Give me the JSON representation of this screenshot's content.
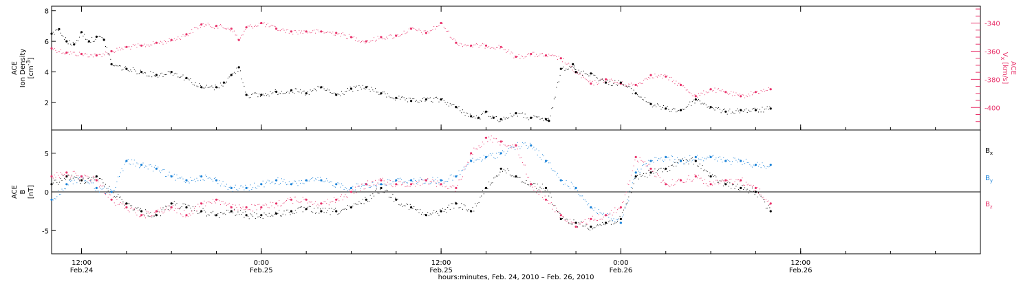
{
  "figure": {
    "xlabel": "hours:minutes, Feb. 24, 2010 – Feb. 26, 2010",
    "time_ticks": [
      {
        "time": "12:00",
        "date": "Feb.24",
        "hours": 12
      },
      {
        "time": "0:00",
        "date": "Feb.25",
        "hours": 24
      },
      {
        "time": "12:00",
        "date": "Feb.25",
        "hours": 36
      },
      {
        "time": "0:00",
        "date": "Feb.26",
        "hours": 48
      },
      {
        "time": "12:00",
        "date": "Feb.26",
        "hours": 60
      }
    ],
    "colors": {
      "axes": "#000000",
      "density": "#000000",
      "vx": "#e8336b",
      "bx": "#000000",
      "by": "#1a82d8",
      "bz": "#e8336b"
    }
  },
  "chart_data": [
    {
      "type": "scatter",
      "panel": "plasma",
      "xlim": [
        10,
        72
      ],
      "x_units": "hours since Feb. 24, 2010 0:00",
      "left_axis": {
        "label_lines": [
          "ACE",
          "Ion Density"
        ],
        "unit_base": "[cm",
        "unit_sup": "-3",
        "unit_end": "]",
        "ylim": [
          0.2,
          8.3
        ],
        "ticks": [
          2,
          4,
          6,
          8
        ]
      },
      "right_axis": {
        "label_line": "ACE",
        "var_base": "V",
        "var_sub": "x",
        "unit": "[km/s]",
        "ylim": [
          -416,
          -328
        ],
        "ticks": [
          -340,
          -360,
          -380,
          -400
        ]
      },
      "series": [
        {
          "key": "density",
          "axis": "left",
          "x": [
            10.0,
            10.5,
            11.0,
            11.5,
            12.0,
            12.5,
            13.0,
            13.5,
            14.0,
            15.0,
            16.0,
            17.0,
            18.0,
            19.0,
            20.0,
            21.0,
            21.5,
            22.0,
            22.5,
            23.0,
            24.0,
            25.0,
            26.0,
            27.0,
            28.0,
            29.0,
            30.0,
            31.0,
            32.0,
            33.0,
            34.0,
            35.0,
            36.0,
            37.0,
            38.0,
            38.5,
            39.0,
            39.5,
            40.0,
            41.0,
            42.0,
            43.0,
            43.2,
            44.0,
            44.8,
            45.0,
            46.0,
            47.0,
            48.0,
            49.0,
            50.0,
            51.0,
            52.0,
            53.0,
            54.0,
            55.0,
            56.0,
            57.0,
            58.0
          ],
          "y": [
            6.5,
            6.8,
            6.0,
            5.8,
            6.6,
            6.0,
            6.3,
            6.1,
            4.5,
            4.2,
            4.0,
            3.8,
            4.0,
            3.6,
            3.0,
            3.0,
            3.3,
            3.8,
            4.3,
            2.5,
            2.5,
            2.7,
            2.8,
            2.6,
            3.0,
            2.5,
            2.9,
            3.0,
            2.6,
            2.3,
            2.1,
            2.2,
            2.2,
            1.7,
            1.1,
            1.0,
            1.4,
            1.0,
            0.9,
            1.3,
            1.0,
            0.9,
            0.8,
            4.2,
            4.5,
            4.0,
            3.9,
            3.3,
            3.3,
            2.6,
            1.9,
            1.6,
            1.5,
            2.2,
            1.7,
            1.4,
            1.5,
            1.5,
            1.6
          ]
        },
        {
          "key": "vx",
          "axis": "right",
          "x": [
            10.0,
            11.0,
            12.0,
            13.0,
            14.0,
            15.0,
            16.0,
            17.0,
            18.0,
            19.0,
            20.0,
            21.0,
            22.0,
            22.5,
            23.0,
            24.0,
            25.0,
            26.0,
            27.0,
            28.0,
            29.0,
            30.0,
            31.0,
            32.0,
            33.0,
            34.0,
            35.0,
            36.0,
            37.0,
            38.0,
            39.0,
            40.0,
            41.0,
            42.0,
            43.0,
            44.0,
            45.0,
            46.0,
            47.0,
            48.0,
            49.0,
            50.0,
            51.0,
            52.0,
            53.0,
            54.0,
            55.0,
            56.0,
            57.0,
            58.0
          ],
          "y": [
            -358,
            -361,
            -362,
            -363,
            -360,
            -357,
            -356,
            -354,
            -352,
            -348,
            -341,
            -342,
            -344,
            -352,
            -343,
            -340,
            -344,
            -346,
            -346,
            -346,
            -347,
            -350,
            -353,
            -350,
            -349,
            -344,
            -347,
            -340,
            -354,
            -356,
            -356,
            -357,
            -364,
            -362,
            -363,
            -365,
            -375,
            -383,
            -380,
            -383,
            -384,
            -377,
            -378,
            -384,
            -392,
            -387,
            -389,
            -392,
            -389,
            -387
          ]
        }
      ]
    },
    {
      "type": "scatter",
      "panel": "magnetic-field",
      "xlim": [
        10,
        72
      ],
      "x_units": "hours since Feb. 24, 2010 0:00",
      "y_axis": {
        "label_line": "ACE",
        "var_base": "B",
        "unit": "[nT]",
        "ylim": [
          -8,
          8
        ],
        "ticks": [
          -5,
          0,
          5
        ]
      },
      "series": [
        {
          "key": "bx",
          "name": "B",
          "sub": "x",
          "x": [
            10.0,
            11.0,
            12.0,
            13.0,
            14.0,
            15.0,
            16.0,
            17.0,
            18.0,
            19.0,
            20.0,
            21.0,
            22.0,
            23.0,
            24.0,
            25.0,
            26.0,
            27.0,
            28.0,
            29.0,
            30.0,
            31.0,
            32.0,
            33.0,
            34.0,
            35.0,
            36.0,
            37.0,
            38.0,
            39.0,
            40.0,
            41.0,
            42.0,
            43.0,
            44.0,
            45.0,
            46.0,
            47.0,
            48.0,
            49.0,
            50.0,
            51.0,
            52.0,
            53.0,
            54.0,
            55.0,
            56.0,
            57.0,
            58.0
          ],
          "y": [
            1.0,
            2.0,
            1.5,
            2.0,
            0.0,
            -1.5,
            -2.5,
            -3.0,
            -1.5,
            -2.0,
            -2.5,
            -3.0,
            -2.5,
            -3.0,
            -3.0,
            -2.8,
            -2.5,
            -2.2,
            -2.5,
            -2.5,
            -2.0,
            -1.0,
            0.5,
            -1.0,
            -2.0,
            -3.0,
            -2.5,
            -1.5,
            -2.5,
            0.5,
            3.0,
            2.0,
            1.0,
            0.5,
            -3.5,
            -4.0,
            -4.5,
            -4.0,
            -3.5,
            2.0,
            2.5,
            3.0,
            4.0,
            4.0,
            2.0,
            1.0,
            0.5,
            0.0,
            -2.5
          ]
        },
        {
          "key": "by",
          "name": "B",
          "sub": "y",
          "x": [
            10.0,
            11.0,
            12.0,
            13.0,
            14.0,
            15.0,
            16.0,
            17.0,
            18.0,
            19.0,
            20.0,
            21.0,
            22.0,
            23.0,
            24.0,
            25.0,
            26.0,
            27.0,
            28.0,
            29.0,
            30.0,
            31.0,
            32.0,
            33.0,
            34.0,
            35.0,
            36.0,
            37.0,
            38.0,
            39.0,
            40.0,
            41.0,
            42.0,
            43.0,
            44.0,
            45.0,
            46.0,
            47.0,
            48.0,
            49.0,
            50.0,
            51.0,
            52.0,
            53.0,
            54.0,
            55.0,
            56.0,
            57.0,
            58.0
          ],
          "y": [
            -1.0,
            1.0,
            2.0,
            0.5,
            0.0,
            4.0,
            3.5,
            3.0,
            2.0,
            1.5,
            2.0,
            1.5,
            0.5,
            0.5,
            1.0,
            1.5,
            1.0,
            1.5,
            1.5,
            1.0,
            0.5,
            1.0,
            1.0,
            1.5,
            1.5,
            1.5,
            1.5,
            2.0,
            4.0,
            4.5,
            5.0,
            6.0,
            6.0,
            4.0,
            1.5,
            0.5,
            -2.0,
            -3.0,
            -4.0,
            2.5,
            4.0,
            4.5,
            4.0,
            4.5,
            4.5,
            4.0,
            4.0,
            3.5,
            3.5
          ]
        },
        {
          "key": "bz",
          "name": "B",
          "sub": "z",
          "x": [
            10.0,
            11.0,
            12.0,
            13.0,
            14.0,
            15.0,
            16.0,
            17.0,
            18.0,
            19.0,
            20.0,
            21.0,
            22.0,
            23.0,
            24.0,
            25.0,
            26.0,
            27.0,
            28.0,
            29.0,
            30.0,
            31.0,
            32.0,
            33.0,
            34.0,
            35.0,
            36.0,
            37.0,
            38.0,
            39.0,
            40.0,
            41.0,
            42.0,
            43.0,
            44.0,
            45.0,
            46.0,
            47.0,
            48.0,
            49.0,
            50.0,
            51.0,
            52.0,
            53.0,
            54.0,
            55.0,
            56.0,
            57.0,
            58.0
          ],
          "y": [
            2.0,
            2.5,
            2.0,
            1.5,
            -1.0,
            -2.0,
            -3.0,
            -2.5,
            -2.0,
            -3.0,
            -1.5,
            -1.0,
            -2.0,
            -2.0,
            -2.0,
            -1.5,
            -1.0,
            -1.0,
            -1.5,
            -1.0,
            0.0,
            1.0,
            1.5,
            1.0,
            1.0,
            1.5,
            1.0,
            0.5,
            5.0,
            7.0,
            6.5,
            6.0,
            1.0,
            -1.0,
            -3.0,
            -4.5,
            -3.5,
            -3.0,
            -2.0,
            4.5,
            3.0,
            1.0,
            1.5,
            2.0,
            1.0,
            1.5,
            1.5,
            0.5,
            -1.5
          ]
        }
      ]
    }
  ]
}
